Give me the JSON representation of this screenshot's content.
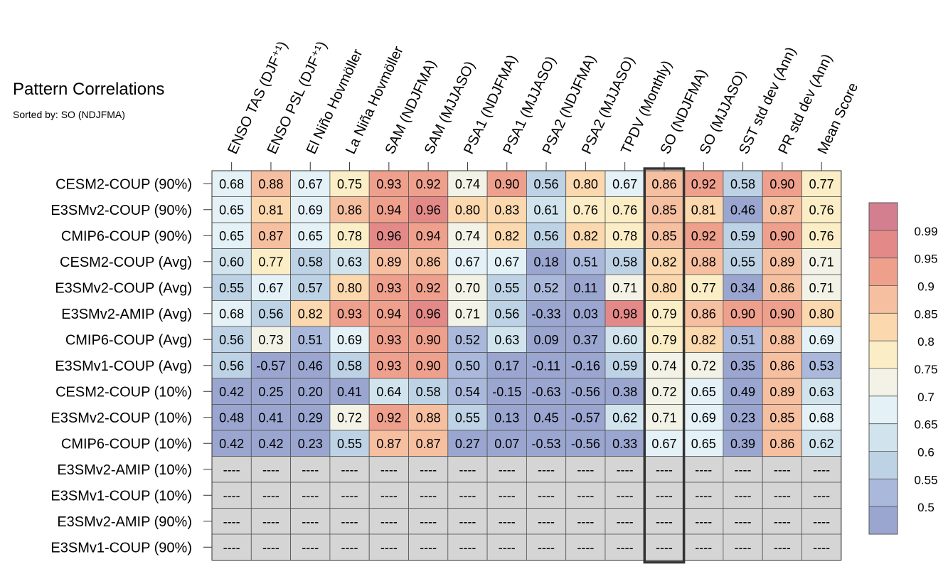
{
  "title": "Pattern Correlations",
  "subtitle": "Sorted by: SO (NDJFMA)",
  "chart_data": {
    "type": "heatmap",
    "columns": [
      "ENSO TAS (DJF⁺¹)",
      "ENSO PSL (DJF⁺¹)",
      "El Niño Hovmöller",
      "La Niña Hovmöller",
      "SAM (NDJFMA)",
      "SAM (MJJASO)",
      "PSA1 (NDJFMA)",
      "PSA1 (MJJASO)",
      "PSA2 (NDJFMA)",
      "PSA2 (MJJASO)",
      "TPDV (Monthly)",
      "SO (NDJFMA)",
      "SO (MJJASO)",
      "SST std dev (Ann)",
      "PR std dev (Ann)",
      "Mean Score"
    ],
    "rows": [
      "CESM2-COUP (90%)",
      "E3SMv2-COUP (90%)",
      "CMIP6-COUP (90%)",
      "CESM2-COUP (Avg)",
      "E3SMv2-COUP (Avg)",
      "E3SMv2-AMIP (Avg)",
      "CMIP6-COUP (Avg)",
      "E3SMv1-COUP (Avg)",
      "CESM2-COUP (10%)",
      "E3SMv2-COUP (10%)",
      "CMIP6-COUP (10%)",
      "E3SMv2-AMIP (10%)",
      "E3SMv1-COUP (10%)",
      "E3SMv2-AMIP (90%)",
      "E3SMv1-COUP (90%)"
    ],
    "values": [
      [
        "0.68",
        "0.88",
        "0.67",
        "0.75",
        "0.93",
        "0.92",
        "0.74",
        "0.90",
        "0.56",
        "0.80",
        "0.67",
        "0.86",
        "0.92",
        "0.58",
        "0.90",
        "0.77"
      ],
      [
        "0.65",
        "0.81",
        "0.69",
        "0.86",
        "0.94",
        "0.96",
        "0.80",
        "0.83",
        "0.61",
        "0.76",
        "0.76",
        "0.85",
        "0.81",
        "0.46",
        "0.87",
        "0.76"
      ],
      [
        "0.65",
        "0.87",
        "0.65",
        "0.78",
        "0.96",
        "0.94",
        "0.74",
        "0.82",
        "0.56",
        "0.82",
        "0.78",
        "0.85",
        "0.92",
        "0.59",
        "0.90",
        "0.76"
      ],
      [
        "0.60",
        "0.77",
        "0.58",
        "0.63",
        "0.89",
        "0.86",
        "0.67",
        "0.67",
        "0.18",
        "0.51",
        "0.58",
        "0.82",
        "0.88",
        "0.55",
        "0.89",
        "0.71"
      ],
      [
        "0.55",
        "0.67",
        "0.57",
        "0.80",
        "0.93",
        "0.92",
        "0.70",
        "0.55",
        "0.52",
        "0.11",
        "0.71",
        "0.80",
        "0.77",
        "0.34",
        "0.86",
        "0.71"
      ],
      [
        "0.68",
        "0.56",
        "0.82",
        "0.93",
        "0.94",
        "0.96",
        "0.71",
        "0.56",
        "-0.33",
        "0.03",
        "0.98",
        "0.79",
        "0.86",
        "0.90",
        "0.90",
        "0.80"
      ],
      [
        "0.56",
        "0.73",
        "0.51",
        "0.69",
        "0.93",
        "0.90",
        "0.52",
        "0.63",
        "0.09",
        "0.37",
        "0.60",
        "0.79",
        "0.82",
        "0.51",
        "0.88",
        "0.69"
      ],
      [
        "0.56",
        "-0.57",
        "0.46",
        "0.58",
        "0.93",
        "0.90",
        "0.50",
        "0.17",
        "-0.11",
        "-0.16",
        "0.59",
        "0.74",
        "0.72",
        "0.35",
        "0.86",
        "0.53"
      ],
      [
        "0.42",
        "0.25",
        "0.20",
        "0.41",
        "0.64",
        "0.58",
        "0.54",
        "-0.15",
        "-0.63",
        "-0.56",
        "0.38",
        "0.72",
        "0.65",
        "0.49",
        "0.89",
        "0.63"
      ],
      [
        "0.48",
        "0.41",
        "0.29",
        "0.72",
        "0.92",
        "0.88",
        "0.55",
        "0.13",
        "0.45",
        "-0.57",
        "0.62",
        "0.71",
        "0.69",
        "0.23",
        "0.85",
        "0.68"
      ],
      [
        "0.42",
        "0.42",
        "0.23",
        "0.55",
        "0.87",
        "0.87",
        "0.27",
        "0.07",
        "-0.53",
        "-0.56",
        "0.33",
        "0.67",
        "0.65",
        "0.39",
        "0.86",
        "0.62"
      ],
      [
        "----",
        "----",
        "----",
        "----",
        "----",
        "----",
        "----",
        "----",
        "----",
        "----",
        "----",
        "----",
        "----",
        "----",
        "----",
        "----"
      ],
      [
        "----",
        "----",
        "----",
        "----",
        "----",
        "----",
        "----",
        "----",
        "----",
        "----",
        "----",
        "----",
        "----",
        "----",
        "----",
        "----"
      ],
      [
        "----",
        "----",
        "----",
        "----",
        "----",
        "----",
        "----",
        "----",
        "----",
        "----",
        "----",
        "----",
        "----",
        "----",
        "----",
        "----"
      ],
      [
        "----",
        "----",
        "----",
        "----",
        "----",
        "----",
        "----",
        "----",
        "----",
        "----",
        "----",
        "----",
        "----",
        "----",
        "----",
        "----"
      ]
    ],
    "highlighted_column": "SO (NDJFMA)",
    "missing_label": "----",
    "colorbar": {
      "boundaries": [
        0.5,
        0.55,
        0.6,
        0.65,
        0.7,
        0.75,
        0.8,
        0.85,
        0.9,
        0.95,
        0.99
      ],
      "tick_labels": [
        "0.99",
        "0.95",
        "0.9",
        "0.85",
        "0.8",
        "0.75",
        "0.7",
        "0.65",
        "0.6",
        "0.55",
        "0.5"
      ],
      "colors": [
        "#9aa6d0",
        "#aab9db",
        "#bdd3e5",
        "#d1e4ee",
        "#e4f1f6",
        "#f2f2e6",
        "#fbeec6",
        "#fbd8ad",
        "#f6bf9f",
        "#eea08d",
        "#e38a89",
        "#d47f8f"
      ]
    },
    "missing_color": "#d5d5d5"
  }
}
